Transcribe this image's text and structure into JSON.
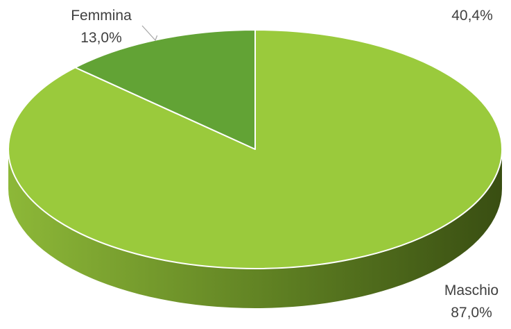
{
  "chart_data": {
    "type": "pie",
    "style": "3d",
    "categories": [
      "Maschio",
      "Femmina"
    ],
    "values": [
      87.0,
      13.0
    ],
    "value_labels": [
      "87,0%",
      "13,0%"
    ],
    "colors": [
      "#9ACA3C",
      "#62A335"
    ],
    "side_colors": [
      "#3C5214",
      "#9ACA3C"
    ],
    "legend": "none",
    "extra_label": "40,4%"
  }
}
